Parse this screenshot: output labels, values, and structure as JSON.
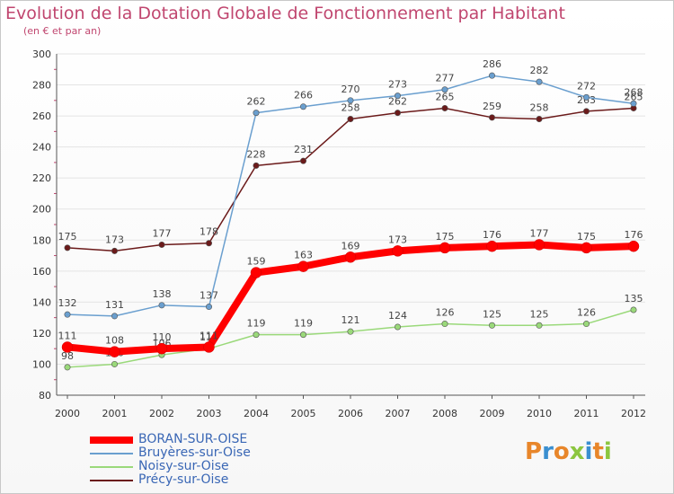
{
  "header": {
    "title": "Evolution de la Dotation Globale de Fonctionnement par Habitant",
    "subtitle": "(en € et par an)"
  },
  "logo": {
    "letters": [
      "P",
      "r",
      "o",
      "x",
      "i",
      "t",
      "i"
    ],
    "colors": [
      "#e8862a",
      "#3a8fd0",
      "#e8862a",
      "#8cc63f",
      "#3a8fd0",
      "#e8862a",
      "#8cc63f"
    ]
  },
  "chart_data": {
    "type": "line",
    "title": "Evolution de la Dotation Globale de Fonctionnement par Habitant",
    "subtitle": "(en € et par an)",
    "xlabel": "",
    "ylabel": "",
    "categories": [
      "2000",
      "2001",
      "2002",
      "2003",
      "2004",
      "2005",
      "2006",
      "2007",
      "2008",
      "2009",
      "2010",
      "2011",
      "2012"
    ],
    "ylim": [
      80,
      300
    ],
    "yticks": [
      80,
      100,
      120,
      140,
      160,
      180,
      200,
      220,
      240,
      260,
      280,
      300
    ],
    "grid": true,
    "legend_position": "bottom-left",
    "series": [
      {
        "name": "Précy-sur-Oise",
        "color": "#6b1a1a",
        "values": [
          175,
          173,
          177,
          178,
          228,
          231,
          258,
          262,
          265,
          259,
          258,
          263,
          265
        ]
      },
      {
        "name": "Bruyères-sur-Oise",
        "color": "#6a9fcf",
        "values": [
          132,
          131,
          138,
          137,
          262,
          266,
          270,
          273,
          277,
          286,
          282,
          272,
          268
        ]
      },
      {
        "name": "Noisy-sur-Oise",
        "color": "#9ad97a",
        "values": [
          98,
          100,
          106,
          110,
          119,
          119,
          121,
          124,
          126,
          125,
          125,
          126,
          135
        ]
      },
      {
        "name": "BORAN-SUR-OISE",
        "color": "#ff0000",
        "values": [
          111,
          108,
          110,
          111,
          159,
          163,
          169,
          173,
          175,
          176,
          177,
          175,
          176
        ]
      }
    ],
    "legend": [
      {
        "name": "BORAN-SUR-OISE",
        "color": "#ff0000",
        "text_color": "#3a67b5"
      },
      {
        "name": "Bruyères-sur-Oise",
        "color": "#6a9fcf",
        "text_color": "#3a67b5"
      },
      {
        "name": "Noisy-sur-Oise",
        "color": "#9ad97a",
        "text_color": "#3a67b5"
      },
      {
        "name": "Précy-sur-Oise",
        "color": "#6b1a1a",
        "text_color": "#3a67b5"
      }
    ]
  }
}
